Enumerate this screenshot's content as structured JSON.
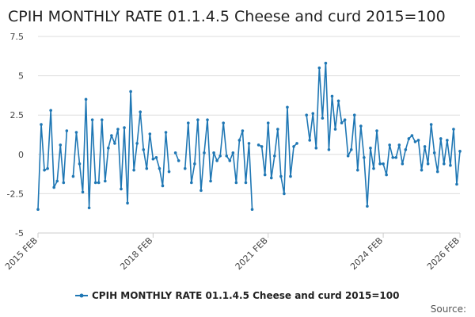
{
  "chart_data": {
    "type": "line",
    "title": "CPIH MONTHLY RATE 01.1.4.5 Cheese and curd 2015=100",
    "xlabel": "",
    "ylabel": "",
    "ylim": [
      -5,
      7.5
    ],
    "yticks": [
      "7.5",
      "5",
      "2.5",
      "0",
      "-2.5",
      "-5"
    ],
    "ytick_values": [
      7.5,
      5,
      2.5,
      0,
      -2.5,
      -5
    ],
    "xticks": [
      "2015 FEB",
      "2018 FEB",
      "2021 FEB",
      "2024 FEB",
      "2026 FEB"
    ],
    "xtick_months": [
      0,
      36,
      72,
      108,
      132
    ],
    "x_start": "2015 FEB",
    "x_end": "2026 FEB",
    "series": [
      {
        "name": "CPIH MONTHLY RATE 01.1.4.5 Cheese and curd 2015=100",
        "color": "#1f77b4",
        "values": [
          -3.5,
          1.9,
          -1.0,
          -0.9,
          2.8,
          -2.1,
          -1.7,
          0.6,
          -1.8,
          1.5,
          null,
          -1.4,
          1.4,
          -0.6,
          -2.4,
          3.5,
          -3.4,
          2.2,
          -1.8,
          -1.8,
          2.2,
          -1.7,
          0.4,
          1.2,
          0.7,
          1.6,
          -2.2,
          1.7,
          -3.1,
          4.0,
          -1.0,
          0.7,
          2.7,
          0.3,
          -0.9,
          1.3,
          -0.3,
          -0.2,
          -0.9,
          -2.0,
          1.4,
          -1.1,
          null,
          0.1,
          -0.4,
          null,
          -0.9,
          2.0,
          -1.8,
          -0.6,
          2.2,
          -2.3,
          0.1,
          2.2,
          -1.7,
          0.1,
          -0.4,
          -0.1,
          2.0,
          -0.1,
          -0.4,
          0.1,
          -1.8,
          0.9,
          1.5,
          -1.8,
          0.7,
          -3.5,
          null,
          0.6,
          0.5,
          -1.3,
          2.0,
          -1.5,
          -0.1,
          1.6,
          -1.4,
          -2.5,
          3.0,
          -1.4,
          0.5,
          0.7,
          null,
          null,
          2.5,
          0.9,
          2.6,
          0.4,
          5.5,
          2.3,
          5.8,
          0.3,
          3.7,
          1.6,
          3.4,
          2.0,
          2.2,
          -0.1,
          0.3,
          2.5,
          -1.0,
          1.8,
          -0.2,
          -3.3,
          0.4,
          -0.9,
          1.5,
          -0.6,
          -0.6,
          -1.3,
          0.6,
          -0.2,
          -0.2,
          0.6,
          -0.6,
          0.3,
          1.0,
          1.2,
          0.8,
          0.9,
          -1.0,
          0.5,
          -0.6,
          1.9,
          0.1,
          -1.1,
          1.0,
          -0.6,
          0.9,
          -0.7,
          1.6,
          -1.9,
          0.2
        ]
      }
    ],
    "legend_position": "bottom-center",
    "grid": true
  },
  "source_label": "Source:"
}
